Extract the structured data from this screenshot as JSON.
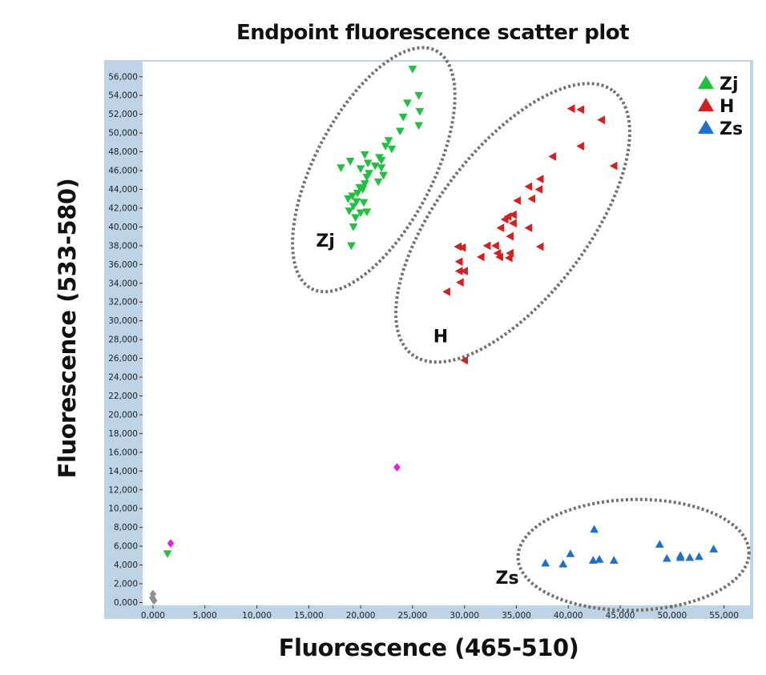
{
  "chart_data": {
    "type": "scatter",
    "title": "Endpoint fluorescence scatter plot",
    "xlabel": "Fluorescence (465-510)",
    "ylabel": "Fluorescence (533-580)",
    "xlim": [
      -1000,
      57500
    ],
    "ylim": [
      -300,
      57600
    ],
    "x_ticks": [
      "0,000",
      "5,000",
      "10,000",
      "15,000",
      "20,000",
      "25,000",
      "30,000",
      "35,000",
      "40,000",
      "45,000",
      "50,000",
      "55,000"
    ],
    "y_ticks": [
      "0,000",
      "2,000",
      "4,000",
      "6,000",
      "8,000",
      "10,000",
      "12,000",
      "14,000",
      "16,000",
      "18,000",
      "20,000",
      "22,000",
      "24,000",
      "26,000",
      "28,000",
      "30,000",
      "32,000",
      "34,000",
      "36,000",
      "38,000",
      "40,000",
      "42,000",
      "44,000",
      "46,000",
      "48,000",
      "50,000",
      "52,000",
      "54,000",
      "56,000"
    ],
    "grid": false,
    "legend": {
      "position": "top-right"
    },
    "series": [
      {
        "name": "Zj",
        "color": "#22c040",
        "marker": "triangle-down",
        "legend_marker": "triangle-up",
        "points": [
          [
            25000,
            56800
          ],
          [
            25600,
            54000
          ],
          [
            24500,
            53200
          ],
          [
            25700,
            52300
          ],
          [
            24100,
            51700
          ],
          [
            25600,
            50800
          ],
          [
            23800,
            50200
          ],
          [
            22700,
            49200
          ],
          [
            22400,
            48600
          ],
          [
            23000,
            48300
          ],
          [
            20400,
            47700
          ],
          [
            21800,
            47400
          ],
          [
            22000,
            47100
          ],
          [
            19000,
            47000
          ],
          [
            20700,
            46800
          ],
          [
            21400,
            46500
          ],
          [
            22000,
            46300
          ],
          [
            18100,
            46300
          ],
          [
            20000,
            46200
          ],
          [
            20800,
            45700
          ],
          [
            22200,
            45500
          ],
          [
            20600,
            45300
          ],
          [
            21700,
            44800
          ],
          [
            20400,
            44600
          ],
          [
            19900,
            44200
          ],
          [
            20200,
            44000
          ],
          [
            19700,
            43600
          ],
          [
            19200,
            43300
          ],
          [
            18800,
            43000
          ],
          [
            19600,
            42700
          ],
          [
            20300,
            42600
          ],
          [
            19300,
            42200
          ],
          [
            18900,
            41700
          ],
          [
            20000,
            41500
          ],
          [
            19500,
            41000
          ],
          [
            20600,
            41600
          ],
          [
            19300,
            40000
          ],
          [
            19100,
            38000
          ],
          [
            1400,
            5200
          ]
        ]
      },
      {
        "name": "H",
        "color": "#d42020",
        "marker": "triangle-left",
        "points": [
          [
            40300,
            52600
          ],
          [
            41200,
            52500
          ],
          [
            43200,
            51400
          ],
          [
            41200,
            48600
          ],
          [
            38500,
            47500
          ],
          [
            44400,
            46500
          ],
          [
            37300,
            45100
          ],
          [
            36200,
            44300
          ],
          [
            37200,
            44000
          ],
          [
            35100,
            42800
          ],
          [
            36500,
            43000
          ],
          [
            34200,
            41100
          ],
          [
            34700,
            41300
          ],
          [
            33900,
            40800
          ],
          [
            34700,
            40400
          ],
          [
            33500,
            39900
          ],
          [
            36200,
            39900
          ],
          [
            34400,
            39000
          ],
          [
            32200,
            38000
          ],
          [
            33000,
            38000
          ],
          [
            29400,
            37900
          ],
          [
            29800,
            37800
          ],
          [
            33200,
            37200
          ],
          [
            34400,
            37200
          ],
          [
            33400,
            36800
          ],
          [
            34300,
            36700
          ],
          [
            31600,
            36800
          ],
          [
            29500,
            36300
          ],
          [
            37300,
            37900
          ],
          [
            29500,
            35300
          ],
          [
            30000,
            35300
          ],
          [
            29600,
            34100
          ],
          [
            28300,
            33100
          ],
          [
            30000,
            25800
          ]
        ]
      },
      {
        "name": "Zs",
        "color": "#1f6fd0",
        "marker": "triangle-up",
        "points": [
          [
            42500,
            7800
          ],
          [
            48800,
            6200
          ],
          [
            54000,
            5700
          ],
          [
            40200,
            5200
          ],
          [
            43000,
            4600
          ],
          [
            42400,
            4500
          ],
          [
            44400,
            4500
          ],
          [
            49500,
            4700
          ],
          [
            50800,
            5000
          ],
          [
            50800,
            4800
          ],
          [
            51700,
            4800
          ],
          [
            52600,
            4900
          ],
          [
            39500,
            4100
          ],
          [
            37800,
            4200
          ]
        ]
      },
      {
        "name": "",
        "color": "#e020e0",
        "marker": "diamond",
        "points": [
          [
            23500,
            14400
          ],
          [
            1700,
            6300
          ]
        ]
      },
      {
        "name": "",
        "color": "#909090",
        "marker": "diamond",
        "points": [
          [
            0,
            900
          ],
          [
            -50,
            500
          ],
          [
            100,
            200
          ]
        ]
      }
    ],
    "annotations": [
      {
        "text": "Zj",
        "x": 15700,
        "y": 37900
      },
      {
        "text": "H",
        "x": 27000,
        "y": 27700
      },
      {
        "text": "Zs",
        "x": 33000,
        "y": 2000
      }
    ]
  }
}
